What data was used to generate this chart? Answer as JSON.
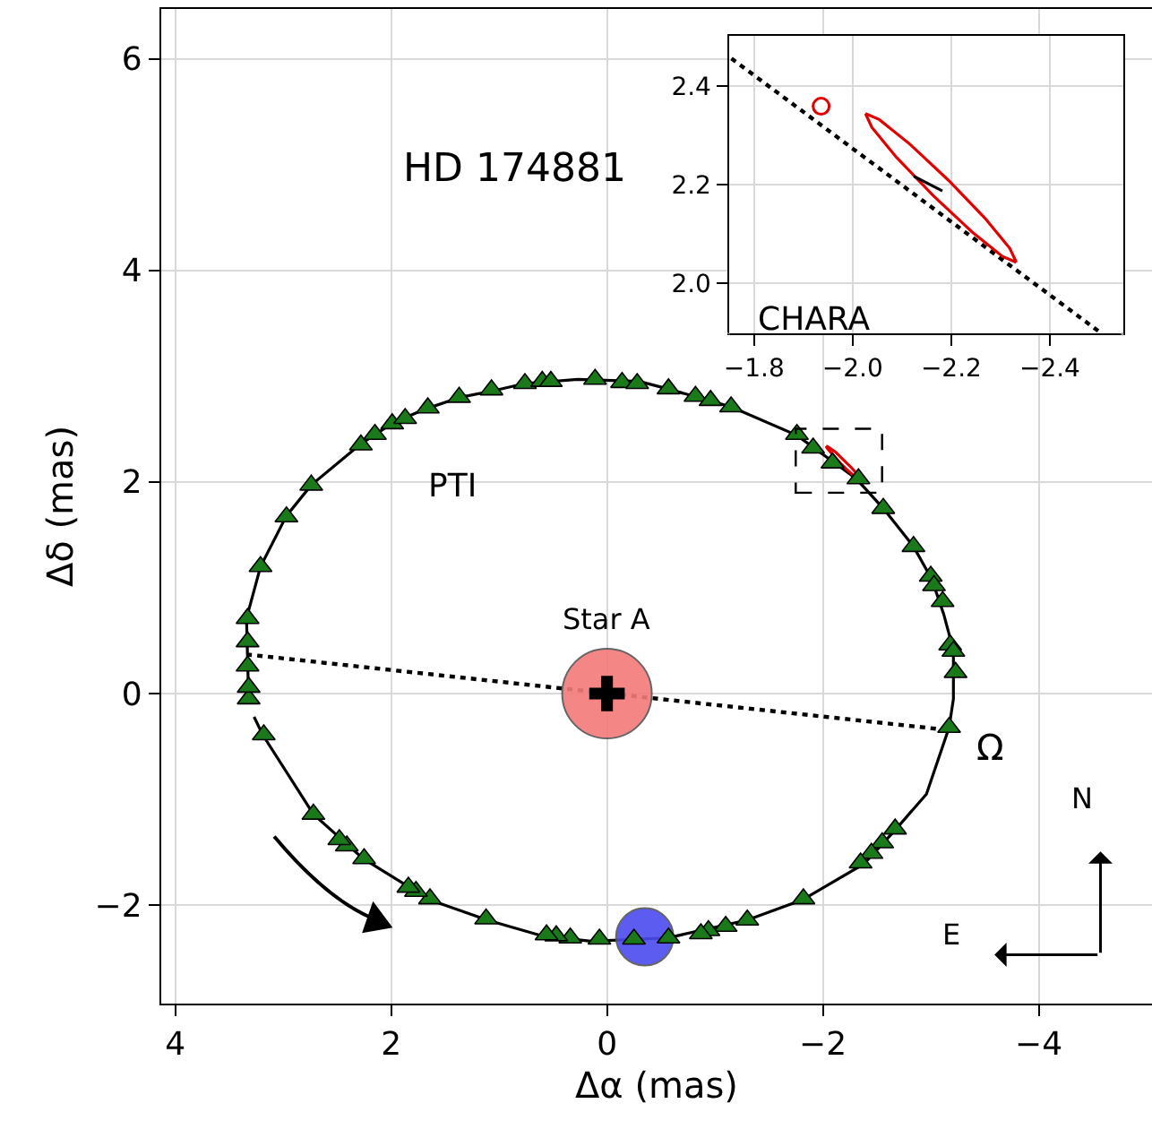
{
  "chart_data": [
    {
      "type": "scatter",
      "xlabel": "Δα (mas)",
      "ylabel": "Δδ (mas)",
      "xlim": [
        4.13,
        -5.05
      ],
      "ylim": [
        -2.93,
        6.47
      ],
      "xticks": [
        4,
        2,
        0,
        {
          "value": -2,
          "label": "−2"
        },
        {
          "value": -4,
          "label": "−4"
        }
      ],
      "yticks": [
        {
          "value": -2,
          "label": "−2"
        },
        0,
        2,
        4,
        6
      ],
      "grid": true,
      "annotations": [
        "HD 174881",
        "PTI",
        {
          "text": "Ω",
          "x": -3.12,
          "y": -0.34
        },
        "N",
        "E",
        {
          "text": "Star A",
          "x": 0,
          "y": 0
        }
      ],
      "series": [
        {
          "type": "line",
          "color": "#000000",
          "line_style": "solid",
          "marker": "none",
          "x": [
            3.32,
            3.34,
            3.21,
            2.97,
            2.74,
            2.28,
            1.98,
            1.68,
            1.36,
            1.06,
            0.76,
            0.27,
            -0.3,
            -0.56,
            -1.15,
            -1.76,
            -2.31,
            -2.56,
            -2.84,
            -3.01,
            -3.12,
            -3.21,
            -3.21,
            -3.17,
            -2.96,
            -2.67,
            -2.38,
            -1.81,
            -1.3,
            -0.56,
            0.15,
            0.6,
            1.11,
            1.64,
            2.26,
            2.72,
            3.19,
            3.27
          ],
          "values": [
            -0.05,
            0.71,
            1.2,
            1.68,
            1.97,
            2.36,
            2.56,
            2.69,
            2.8,
            2.86,
            2.93,
            2.97,
            2.95,
            2.88,
            2.71,
            2.44,
            2.03,
            1.75,
            1.39,
            1.08,
            0.75,
            0.41,
            -0.05,
            -0.32,
            -0.95,
            -1.29,
            -1.61,
            -1.95,
            -2.14,
            -2.31,
            -2.34,
            -2.29,
            -2.14,
            -1.95,
            -1.56,
            -1.14,
            -0.39,
            -0.22
          ]
        },
        {
          "type": "line",
          "color": "#000000",
          "line_style": "dotted",
          "marker": "none",
          "x": [
            3.34,
            -3.12
          ],
          "values": [
            0.37,
            -0.34
          ]
        },
        {
          "type": "line",
          "color": "#e00000",
          "line_style": "solid",
          "marker": "none",
          "x": [
            -2.03,
            -2.05,
            -2.12,
            -2.19,
            -2.27,
            -2.32,
            -2.33
          ],
          "values": [
            2.34,
            2.33,
            2.28,
            2.21,
            2.13,
            2.07,
            2.04
          ]
        },
        {
          "type": "line",
          "color": "#e00000",
          "line_style": "solid",
          "marker": "none",
          "x": [
            -2.33,
            -2.3,
            -2.24,
            -2.16,
            -2.09,
            -2.04,
            -2.03
          ],
          "values": [
            2.04,
            2.05,
            2.1,
            2.18,
            2.26,
            2.32,
            2.34
          ]
        },
        {
          "type": "bubble",
          "colors": [
            "#f47a7a",
            "#4b4bf0"
          ],
          "x": [
            0,
            -0.35
          ],
          "values": [
            0,
            -2.3
          ],
          "sizes": [
            1,
            0.41
          ]
        },
        {
          "color": "#1a7a1a",
          "marker": "triangle",
          "x": [
            3.32,
            3.32,
            3.33,
            3.33,
            3.33,
            3.21,
            2.97,
            2.74,
            2.28,
            2.15,
            1.99,
            1.87,
            1.66,
            1.37,
            1.07,
            0.76,
            0.6,
            0.52,
            0.11,
            -0.14,
            -0.28,
            -0.57,
            -0.82,
            -0.96,
            -1.15,
            -1.76,
            -1.91,
            -2.09,
            -2.33,
            -2.56,
            -2.84,
            -3.0,
            -3.03,
            -3.11,
            -3.18,
            -3.21,
            -3.23,
            -3.17,
            -2.67,
            -2.55,
            -2.45,
            -2.35,
            -1.82,
            -1.3,
            -1.1,
            -0.94,
            -0.87,
            -0.57,
            -0.25,
            0.07,
            0.34,
            0.47,
            0.56,
            1.12,
            1.64,
            1.77,
            1.84,
            2.25,
            2.41,
            2.48,
            2.72,
            3.18
          ],
          "values": [
            -0.05,
            0.06,
            0.26,
            0.49,
            0.71,
            1.2,
            1.67,
            1.97,
            2.35,
            2.45,
            2.55,
            2.6,
            2.7,
            2.8,
            2.87,
            2.93,
            2.95,
            2.95,
            2.97,
            2.94,
            2.93,
            2.88,
            2.81,
            2.77,
            2.71,
            2.45,
            2.32,
            2.18,
            2.03,
            1.75,
            1.39,
            1.11,
            1.02,
            0.87,
            0.46,
            0.4,
            0.2,
            -0.32,
            -1.28,
            -1.41,
            -1.51,
            -1.6,
            -1.94,
            -2.14,
            -2.2,
            -2.24,
            -2.27,
            -2.31,
            -2.32,
            -2.32,
            -2.31,
            -2.29,
            -2.28,
            -2.13,
            -1.94,
            -1.87,
            -1.83,
            -1.56,
            -1.44,
            -1.38,
            -1.14,
            -0.39
          ]
        },
        {
          "color": "#000000",
          "marker": "cross",
          "x": [
            0
          ],
          "values": [
            0
          ]
        }
      ]
    },
    {
      "type": "scatter",
      "xlim": [
        -1.749,
        -2.549
      ],
      "ylim": [
        1.898,
        2.502
      ],
      "xticks": [
        {
          "value": -1.8,
          "label": "−1.8"
        },
        {
          "value": -2.0,
          "label": "−2.0"
        },
        {
          "value": -2.2,
          "label": "−2.2"
        },
        {
          "value": -2.4,
          "label": "−2.4"
        }
      ],
      "yticks": [
        {
          "value": 2.0,
          "label": "2.0"
        },
        {
          "value": 2.2,
          "label": "2.2"
        },
        {
          "value": 2.4,
          "label": "2.4"
        }
      ],
      "grid": true,
      "annotations": [
        "CHARA"
      ],
      "series": [
        {
          "type": "line",
          "color": "#000000",
          "line_style": "dotted",
          "marker": "none",
          "x": [
            -1.754,
            -2.499
          ],
          "values": [
            2.456,
            1.902
          ]
        },
        {
          "type": "line",
          "color": "#e00000",
          "line_style": "solid",
          "marker": "none",
          "x": [
            -2.026,
            -2.054,
            -2.116,
            -2.194,
            -2.269,
            -2.319,
            -2.332
          ],
          "values": [
            2.344,
            2.332,
            2.282,
            2.209,
            2.131,
            2.07,
            2.042
          ]
        },
        {
          "type": "line",
          "color": "#e00000",
          "line_style": "solid",
          "marker": "none",
          "x": [
            -2.332,
            -2.304,
            -2.242,
            -2.164,
            -2.089,
            -2.039,
            -2.026
          ],
          "values": [
            2.042,
            2.054,
            2.104,
            2.177,
            2.255,
            2.316,
            2.344
          ]
        },
        {
          "type": "line",
          "color": "#000000",
          "line_style": "solid",
          "marker": "none",
          "x": [
            -2.124,
            -2.182
          ],
          "values": [
            2.217,
            2.187
          ]
        },
        {
          "color": "#e00000",
          "marker": "circle",
          "x": [
            -1.936
          ],
          "values": [
            2.359
          ]
        }
      ]
    }
  ]
}
